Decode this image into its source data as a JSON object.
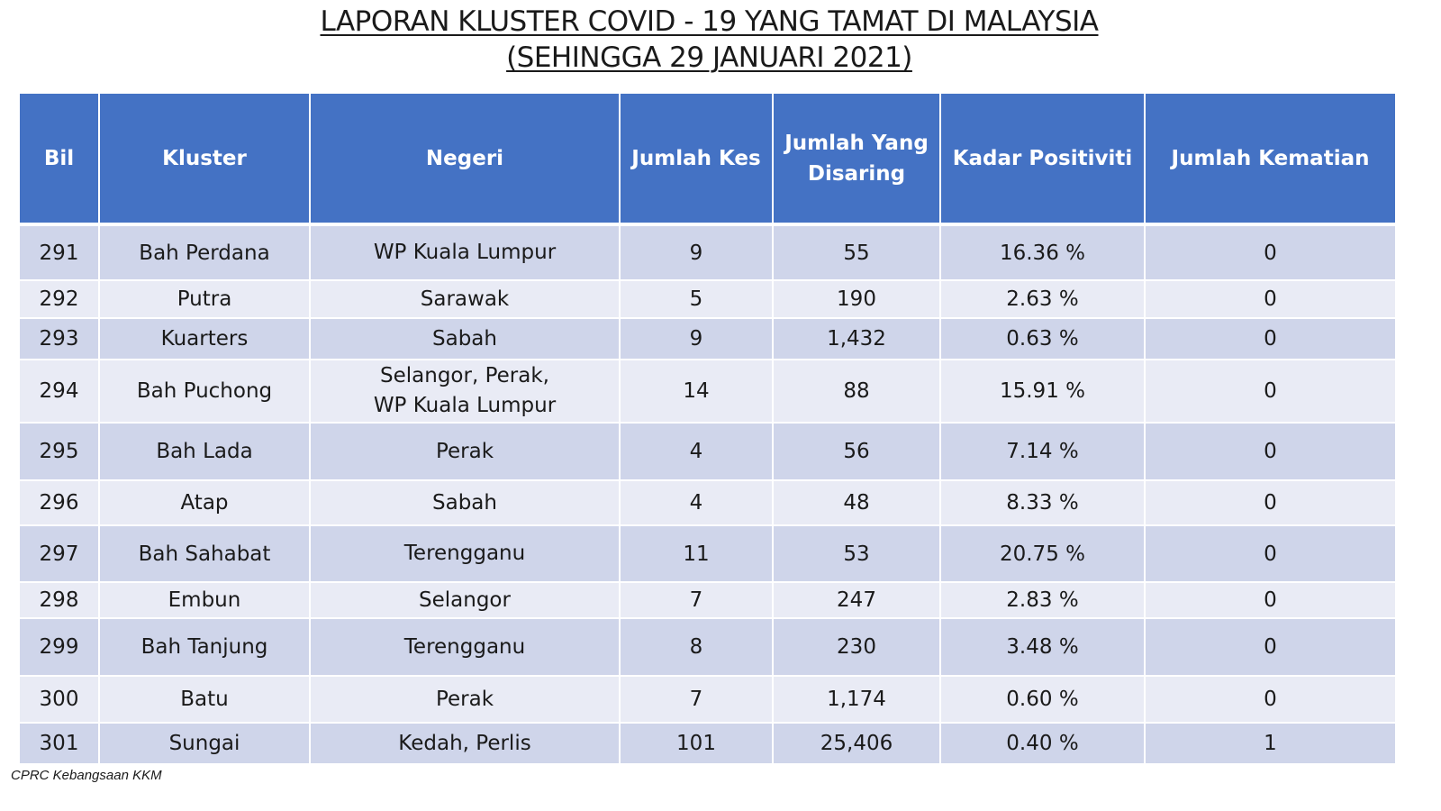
{
  "title": {
    "line1": "LAPORAN KLUSTER COVID - 19 YANG TAMAT DI MALAYSIA",
    "line2": "(SEHINGGA 29 JANUARI 2021)"
  },
  "table": {
    "headers": {
      "bil": "Bil",
      "kluster": "Kluster",
      "negeri": "Negeri",
      "jumlah_kes": "Jumlah Kes",
      "jumlah_disaring_1": "Jumlah Yang",
      "jumlah_disaring_2": "Disaring",
      "kadar_positiviti": "Kadar Positiviti",
      "jumlah_kematian": "Jumlah Kematian"
    },
    "rows": [
      {
        "bil": "291",
        "kluster": "Bah Perdana",
        "negeri_1": "WP Kuala Lumpur",
        "negeri_2": "",
        "kes": "9",
        "disaring": "55",
        "positiviti": "16.36 %",
        "kematian": "0"
      },
      {
        "bil": "292",
        "kluster": "Putra",
        "negeri_1": "Sarawak",
        "negeri_2": "",
        "kes": "5",
        "disaring": "190",
        "positiviti": "2.63 %",
        "kematian": "0"
      },
      {
        "bil": "293",
        "kluster": "Kuarters",
        "negeri_1": "Sabah",
        "negeri_2": "",
        "kes": "9",
        "disaring": "1,432",
        "positiviti": "0.63 %",
        "kematian": "0"
      },
      {
        "bil": "294",
        "kluster": "Bah Puchong",
        "negeri_1": "Selangor, Perak,",
        "negeri_2": "WP Kuala Lumpur",
        "kes": "14",
        "disaring": "88",
        "positiviti": "15.91 %",
        "kematian": "0"
      },
      {
        "bil": "295",
        "kluster": "Bah Lada",
        "negeri_1": "Perak",
        "negeri_2": "",
        "kes": "4",
        "disaring": "56",
        "positiviti": "7.14 %",
        "kematian": "0"
      },
      {
        "bil": "296",
        "kluster": "Atap",
        "negeri_1": "Sabah",
        "negeri_2": "",
        "kes": "4",
        "disaring": "48",
        "positiviti": "8.33 %",
        "kematian": "0"
      },
      {
        "bil": "297",
        "kluster": "Bah Sahabat",
        "negeri_1": "Terengganu",
        "negeri_2": "",
        "kes": "11",
        "disaring": "53",
        "positiviti": "20.75 %",
        "kematian": "0"
      },
      {
        "bil": "298",
        "kluster": "Embun",
        "negeri_1": "Selangor",
        "negeri_2": "",
        "kes": "7",
        "disaring": "247",
        "positiviti": "2.83 %",
        "kematian": "0"
      },
      {
        "bil": "299",
        "kluster": "Bah Tanjung",
        "negeri_1": "Terengganu",
        "negeri_2": "",
        "kes": "8",
        "disaring": "230",
        "positiviti": "3.48 %",
        "kematian": "0"
      },
      {
        "bil": "300",
        "kluster": "Batu",
        "negeri_1": "Perak",
        "negeri_2": "",
        "kes": "7",
        "disaring": "1,174",
        "positiviti": "0.60 %",
        "kematian": "0"
      },
      {
        "bil": "301",
        "kluster": "Sungai",
        "negeri_1": "Kedah, Perlis",
        "negeri_2": "",
        "kes": "101",
        "disaring": "25,406",
        "positiviti": "0.40 %",
        "kematian": "1"
      }
    ]
  },
  "footer": "CPRC Kebangsaan KKM",
  "colors": {
    "header_bg": "#4472c4",
    "row_dark": "#cfd5ea",
    "row_light": "#e9ebf5"
  }
}
